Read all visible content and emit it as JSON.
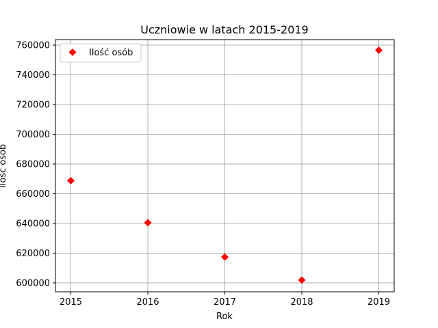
{
  "chart_data": {
    "type": "scatter",
    "title": "Uczniowie w latach 2015-2019",
    "xlabel": "Rok",
    "ylabel": "Ilość osób",
    "x": [
      2015,
      2016,
      2017,
      2018,
      2019
    ],
    "series": [
      {
        "name": "Ilość osób",
        "values": [
          668800,
          640500,
          617400,
          601900,
          756600
        ],
        "color": "#ff0000",
        "marker": "diamond"
      }
    ],
    "xticks": [
      "2015",
      "2016",
      "2017",
      "2018",
      "2019"
    ],
    "yticks": [
      "600000",
      "620000",
      "640000",
      "660000",
      "680000",
      "700000",
      "720000",
      "740000",
      "760000"
    ],
    "xlim": [
      2014.8,
      2019.2
    ],
    "ylim": [
      594000,
      763700
    ],
    "grid": true,
    "legend_position": "top-left"
  }
}
